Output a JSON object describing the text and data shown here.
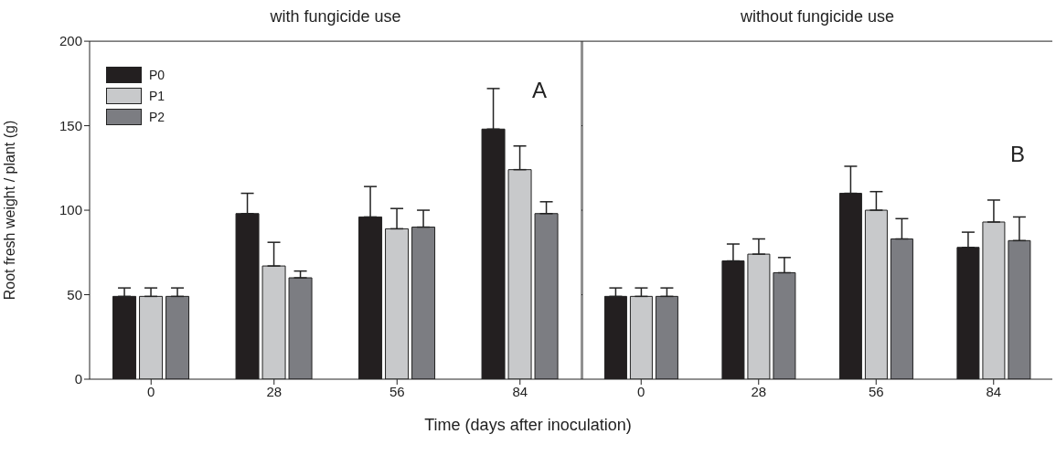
{
  "chart_data": [
    {
      "type": "bar",
      "title": "with fungicide use",
      "xlabel": "Time (days after inoculation)",
      "ylabel": "Root fresh weight / plant (g)",
      "categories": [
        "0",
        "28",
        "56",
        "84"
      ],
      "ylim": [
        0,
        200
      ],
      "yticks": [
        0,
        50,
        100,
        150,
        200
      ],
      "legend": "top left",
      "annotations": [
        "A"
      ],
      "series": [
        {
          "name": "P0",
          "color": "#231f20",
          "values": [
            49,
            98,
            96,
            148
          ],
          "errors": [
            [
              49,
              54
            ],
            [
              98,
              110
            ],
            [
              96,
              114
            ],
            [
              148,
              172
            ]
          ]
        },
        {
          "name": "P1",
          "color": "#c8c9cb",
          "values": [
            49,
            67,
            89,
            124
          ],
          "errors": [
            [
              49,
              54
            ],
            [
              67,
              81
            ],
            [
              89,
              101
            ],
            [
              124,
              138
            ]
          ]
        },
        {
          "name": "P2",
          "color": "#7c7d82",
          "values": [
            49,
            60,
            90,
            98
          ],
          "errors": [
            [
              49,
              54
            ],
            [
              60,
              64
            ],
            [
              90,
              100
            ],
            [
              98,
              105
            ]
          ]
        }
      ]
    },
    {
      "type": "bar",
      "title": "without fungicide use",
      "categories": [
        "0",
        "28",
        "56",
        "84"
      ],
      "ylim": [
        0,
        200
      ],
      "yticks": [
        0,
        50,
        100,
        150,
        200
      ],
      "tick_labels": "x",
      "annotations": [
        "B"
      ],
      "series": [
        {
          "color": "#231f20",
          "values": [
            49,
            70,
            110,
            78
          ],
          "errors": [
            [
              49,
              54
            ],
            [
              70,
              80
            ],
            [
              110,
              126
            ],
            [
              78,
              87
            ]
          ]
        },
        {
          "color": "#c8c9cb",
          "values": [
            49,
            74,
            100,
            93
          ],
          "errors": [
            [
              49,
              54
            ],
            [
              74,
              83
            ],
            [
              100,
              111
            ],
            [
              93,
              106
            ]
          ]
        },
        {
          "color": "#7c7d82",
          "values": [
            49,
            63,
            83,
            82
          ],
          "errors": [
            [
              49,
              54
            ],
            [
              63,
              72
            ],
            [
              83,
              95
            ],
            [
              82,
              96
            ]
          ]
        }
      ]
    }
  ]
}
